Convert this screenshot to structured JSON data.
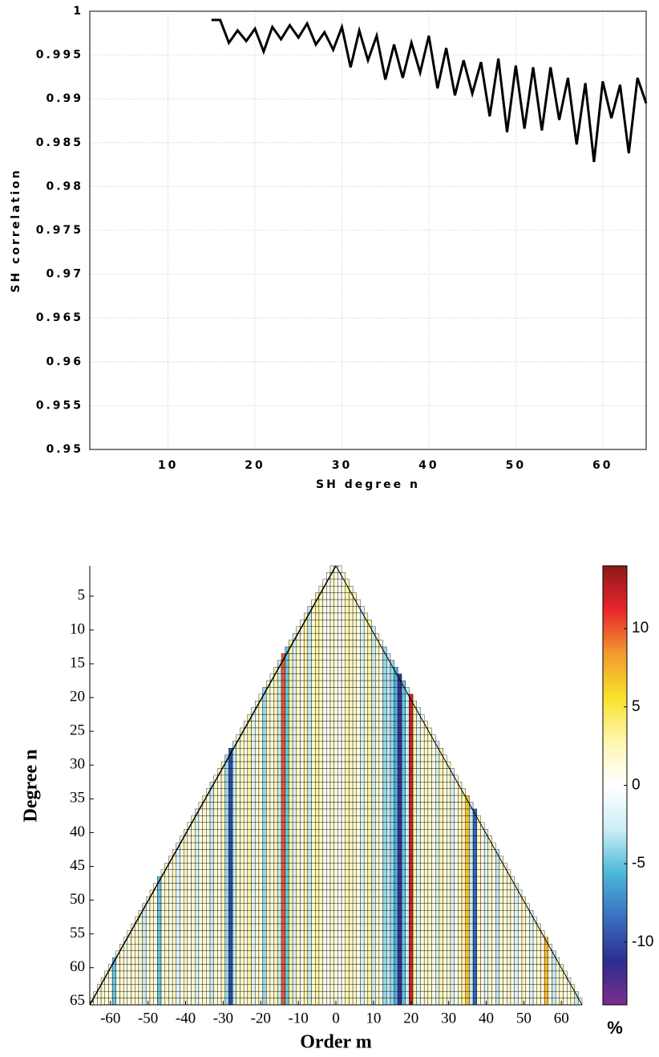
{
  "chart_data": [
    {
      "type": "line",
      "x_label": "SH degree n",
      "y_label": "SH correlation",
      "color": "#000000",
      "grid": true,
      "xlim": [
        1,
        65
      ],
      "ylim": [
        0.95,
        1
      ],
      "xticks": [
        10,
        20,
        30,
        40,
        50,
        60
      ],
      "yticks": [
        0.95,
        0.955,
        0.96,
        0.965,
        0.97,
        0.975,
        0.98,
        0.985,
        0.99,
        0.995,
        1
      ],
      "x": [
        15,
        16,
        17,
        18,
        19,
        20,
        21,
        22,
        23,
        24,
        25,
        26,
        27,
        28,
        29,
        30,
        31,
        32,
        33,
        34,
        35,
        36,
        37,
        38,
        39,
        40,
        41,
        42,
        43,
        44,
        45,
        46,
        47,
        48,
        49,
        50,
        51,
        52,
        53,
        54,
        55,
        56,
        57,
        58,
        59,
        60,
        61,
        62,
        63,
        64,
        65
      ],
      "values": [
        0.999,
        0.999,
        0.9964,
        0.9978,
        0.9966,
        0.998,
        0.9954,
        0.9982,
        0.9968,
        0.9984,
        0.997,
        0.9986,
        0.9962,
        0.9976,
        0.9956,
        0.9982,
        0.9936,
        0.9978,
        0.9944,
        0.9972,
        0.9922,
        0.9962,
        0.9924,
        0.9964,
        0.993,
        0.9972,
        0.9912,
        0.9958,
        0.9904,
        0.9944,
        0.9906,
        0.9942,
        0.988,
        0.9946,
        0.9862,
        0.9938,
        0.9866,
        0.9936,
        0.9864,
        0.9936,
        0.9876,
        0.9924,
        0.9848,
        0.9918,
        0.9828,
        0.992,
        0.9878,
        0.9916,
        0.9838,
        0.9924,
        0.9895
      ]
    },
    {
      "type": "heatmap",
      "x_label": "Order m",
      "y_label": "Degree n",
      "y_reversed": true,
      "xlim": [
        -65.5,
        65.5
      ],
      "ylim": [
        0.5,
        65.5
      ],
      "xticks": [
        -60,
        -50,
        -40,
        -30,
        -20,
        -10,
        0,
        10,
        20,
        30,
        40,
        50,
        60
      ],
      "yticks": [
        5,
        10,
        15,
        20,
        25,
        30,
        35,
        40,
        45,
        50,
        55,
        60,
        65
      ],
      "orders": [
        -65,
        65
      ],
      "column_values": [
        2,
        1,
        1,
        2,
        1,
        1,
        -5,
        1,
        2,
        1,
        1,
        2,
        1,
        2,
        -3,
        1,
        2,
        1,
        -5,
        1,
        2,
        1,
        2,
        -2,
        1,
        2,
        1,
        2,
        -2,
        1,
        2,
        1,
        -3,
        2,
        1,
        2,
        -4,
        -10,
        -3,
        2,
        2,
        1,
        3,
        -2,
        2,
        1,
        -4,
        2,
        1,
        3,
        -3,
        10,
        -5,
        3,
        -2,
        2,
        1,
        3,
        -3,
        2,
        3,
        2,
        1,
        0,
        2,
        1,
        0,
        1,
        3,
        2,
        2,
        1,
        -2,
        2,
        3,
        -3,
        2,
        1,
        -4,
        -3,
        -4,
        -6,
        -12,
        -5,
        -3,
        12,
        3,
        -2,
        1,
        2,
        2,
        1,
        -2,
        3,
        1,
        2,
        -2,
        1,
        2,
        3,
        7,
        -3,
        -9,
        2,
        1,
        -2,
        2,
        1,
        -3,
        2,
        1,
        2,
        1,
        -2,
        1,
        2,
        1,
        -2,
        1,
        2,
        1,
        7,
        1,
        -3,
        1,
        2,
        1,
        1,
        2,
        -3,
        1
      ],
      "colormap": [
        "#7b2d8e",
        "#2b2f8f",
        "#3b6fc0",
        "#4bb8d8",
        "#cdeef5",
        "#ffffff",
        "#fff6b0",
        "#f7e22a",
        "#f29a2e",
        "#e8252b",
        "#8b1a1a"
      ],
      "colorbar": {
        "lim": [
          -14,
          14
        ],
        "ticks": [
          10,
          5,
          0,
          -5,
          -10
        ],
        "label": "%"
      }
    }
  ]
}
